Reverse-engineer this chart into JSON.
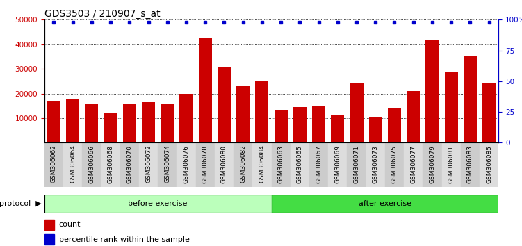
{
  "title": "GDS3503 / 210907_s_at",
  "categories": [
    "GSM306062",
    "GSM306064",
    "GSM306066",
    "GSM306068",
    "GSM306070",
    "GSM306072",
    "GSM306074",
    "GSM306076",
    "GSM306078",
    "GSM306080",
    "GSM306082",
    "GSM306084",
    "GSM306063",
    "GSM306065",
    "GSM306067",
    "GSM306069",
    "GSM306071",
    "GSM306073",
    "GSM306075",
    "GSM306077",
    "GSM306079",
    "GSM306081",
    "GSM306083",
    "GSM306085"
  ],
  "bar_values": [
    17000,
    17500,
    16000,
    12000,
    15500,
    16500,
    15500,
    20000,
    42500,
    30500,
    23000,
    25000,
    13500,
    14500,
    15000,
    11000,
    24500,
    10500,
    14000,
    21000,
    41500,
    29000,
    35000,
    24000
  ],
  "percentile_values": [
    98,
    98,
    98,
    98,
    98,
    98,
    98,
    98,
    98,
    98,
    98,
    98,
    98,
    98,
    98,
    98,
    98,
    98,
    98,
    98,
    98,
    98,
    98,
    98
  ],
  "before_exercise_count": 12,
  "after_exercise_count": 12,
  "bar_color": "#cc0000",
  "dot_color": "#0000cc",
  "ylim_left": [
    0,
    50000
  ],
  "ylim_right": [
    0,
    100
  ],
  "yticks_left": [
    10000,
    20000,
    30000,
    40000,
    50000
  ],
  "yticks_right": [
    0,
    25,
    50,
    75,
    100
  ],
  "protocol_label": "protocol",
  "before_label": "before exercise",
  "after_label": "after exercise",
  "legend_count_label": "count",
  "legend_percentile_label": "percentile rank within the sample",
  "before_color": "#bbffbb",
  "after_color": "#44dd44",
  "title_fontsize": 10,
  "tick_fontsize": 7.5,
  "xtick_fontsize": 6.5,
  "gray_even": "#cccccc",
  "gray_odd": "#dddddd"
}
